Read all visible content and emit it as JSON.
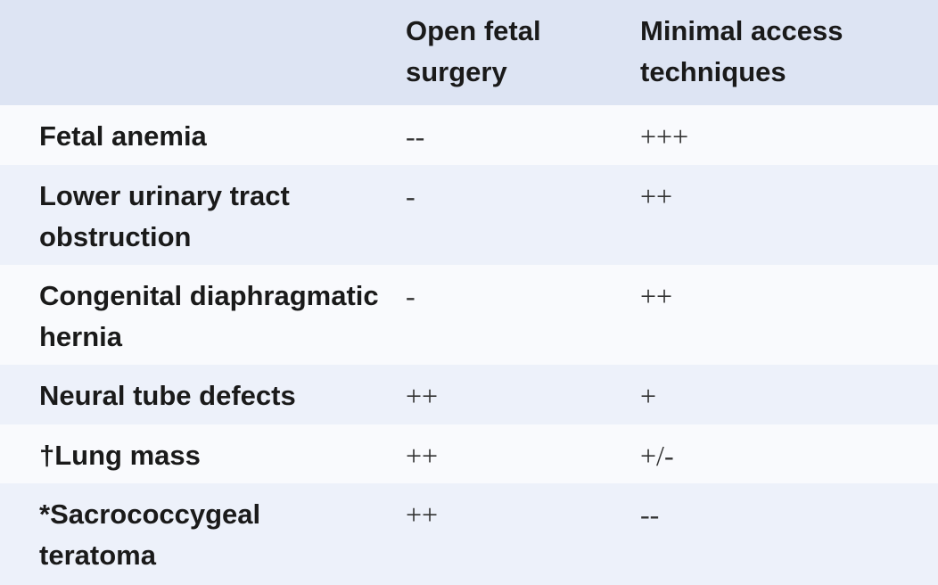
{
  "table": {
    "header": [
      "Open fetal surgery",
      "Minimal access techniques"
    ],
    "rows": [
      [
        "Fetal anemia",
        "--",
        "+++"
      ],
      [
        "Lower urinary tract obstruction",
        "-",
        "++"
      ],
      [
        "Congenital diaphragmatic hernia",
        "-",
        "++"
      ],
      [
        "Neural tube defects",
        "++",
        "+"
      ],
      [
        "†Lung mass",
        "++",
        "+/-"
      ],
      [
        "*Sacrococcygeal teratoma",
        "++",
        "--"
      ]
    ]
  }
}
